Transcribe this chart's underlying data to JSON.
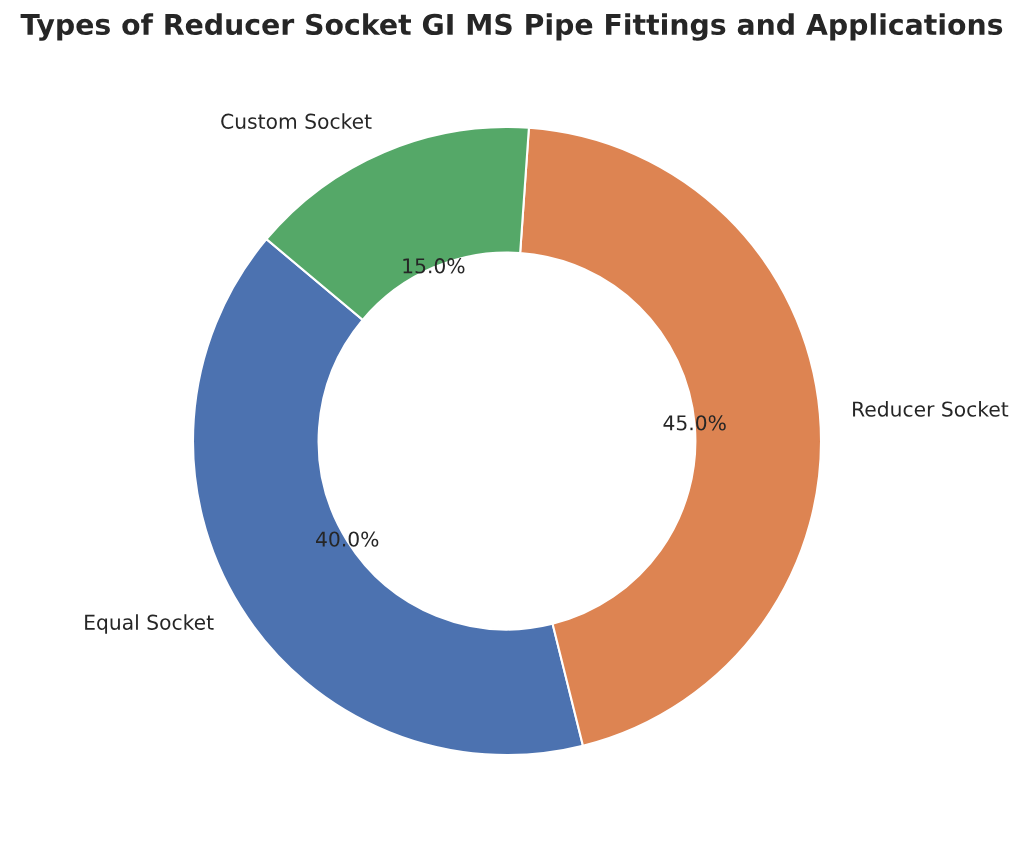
{
  "chart_data": {
    "type": "donut",
    "title": "Types of Reducer Socket GI MS Pipe Fittings and Applications",
    "categories": [
      "Equal Socket",
      "Reducer Socket",
      "Custom Socket"
    ],
    "values": [
      40,
      45,
      15
    ],
    "colors": [
      "#4c72b0",
      "#dd8452",
      "#55a868"
    ],
    "value_labels": [
      "40.0%",
      "45.0%",
      "15.0%"
    ]
  }
}
